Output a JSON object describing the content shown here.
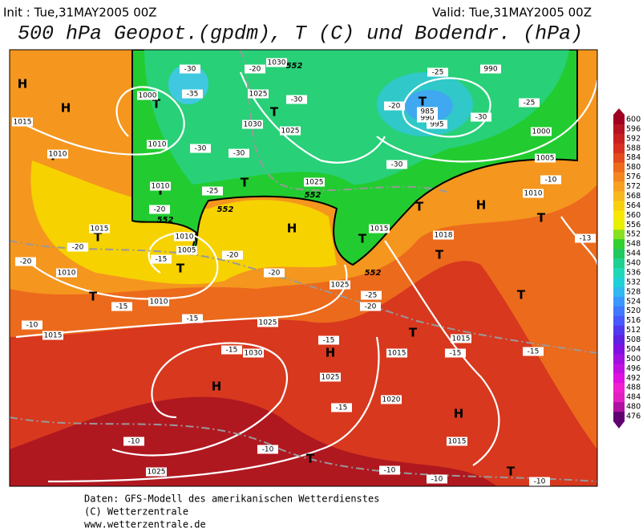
{
  "header": {
    "init": "Init : Tue,31MAY2005 00Z",
    "valid": "Valid: Tue,31MAY2005 00Z",
    "title": "500 hPa Geopot.(gpdm), T (C) und Bodendr. (hPa)"
  },
  "footer": [
    "Daten: GFS-Modell des amerikanischen Wetterdienstes",
    "(C) Wetterzentrale",
    "www.wetterzentrale.de"
  ],
  "colorbar": {
    "levels": [
      600,
      596,
      592,
      588,
      584,
      580,
      576,
      572,
      568,
      564,
      560,
      556,
      552,
      548,
      544,
      540,
      536,
      532,
      528,
      524,
      520,
      516,
      512,
      508,
      504,
      500,
      496,
      492,
      488,
      484,
      480,
      476
    ],
    "colors": [
      "#a00020",
      "#b41420",
      "#c82020",
      "#d83020",
      "#e44a1c",
      "#ee6a1c",
      "#f4861e",
      "#f8a020",
      "#f8b820",
      "#f8d010",
      "#f8e800",
      "#e8f000",
      "#88e020",
      "#30d030",
      "#20c860",
      "#20d090",
      "#20d8b8",
      "#20d0d8",
      "#30b8f0",
      "#3898ff",
      "#4078ff",
      "#4858ff",
      "#5038f0",
      "#6020e0",
      "#8010e0",
      "#a010e0",
      "#c010e0",
      "#e010e0",
      "#f020d0",
      "#e020c0",
      "#b010a0",
      "#600070"
    ]
  },
  "map_labels": [
    "H",
    "H",
    "T",
    "T",
    "T",
    "T",
    "T",
    "T",
    "T",
    "T",
    "H",
    "T",
    "T",
    "T",
    "H",
    "T",
    "T",
    "T",
    "T",
    "H",
    "H",
    "H",
    "T",
    "T",
    "1015",
    "1010",
    "1015",
    "1010",
    "1015",
    "1010",
    "1005",
    "1010",
    "1010",
    "1010",
    "1000",
    "1025",
    "1030",
    "1025",
    "1025",
    "1030",
    "1030",
    "1025",
    "1025",
    "1015",
    "1018",
    "1010",
    "1005",
    "1000",
    "990",
    "995",
    "990",
    "985",
    "1015",
    "1015",
    "1020",
    "1025",
    "1015",
    "1025",
    "-30",
    "-35",
    "-20",
    "-30",
    "-30",
    "-30",
    "-25",
    "-30",
    "-25",
    "-20",
    "-30",
    "-25",
    "-10",
    "-20",
    "-20",
    "-20",
    "-15",
    "-20",
    "-20",
    "-15",
    "-15",
    "-10",
    "-15",
    "-25",
    "-20",
    "-15",
    "-15",
    "-15",
    "-15",
    "-10",
    "-10",
    "-10",
    "-10",
    "-10",
    "-13",
    "552",
    "552",
    "552",
    "552",
    "552"
  ]
}
